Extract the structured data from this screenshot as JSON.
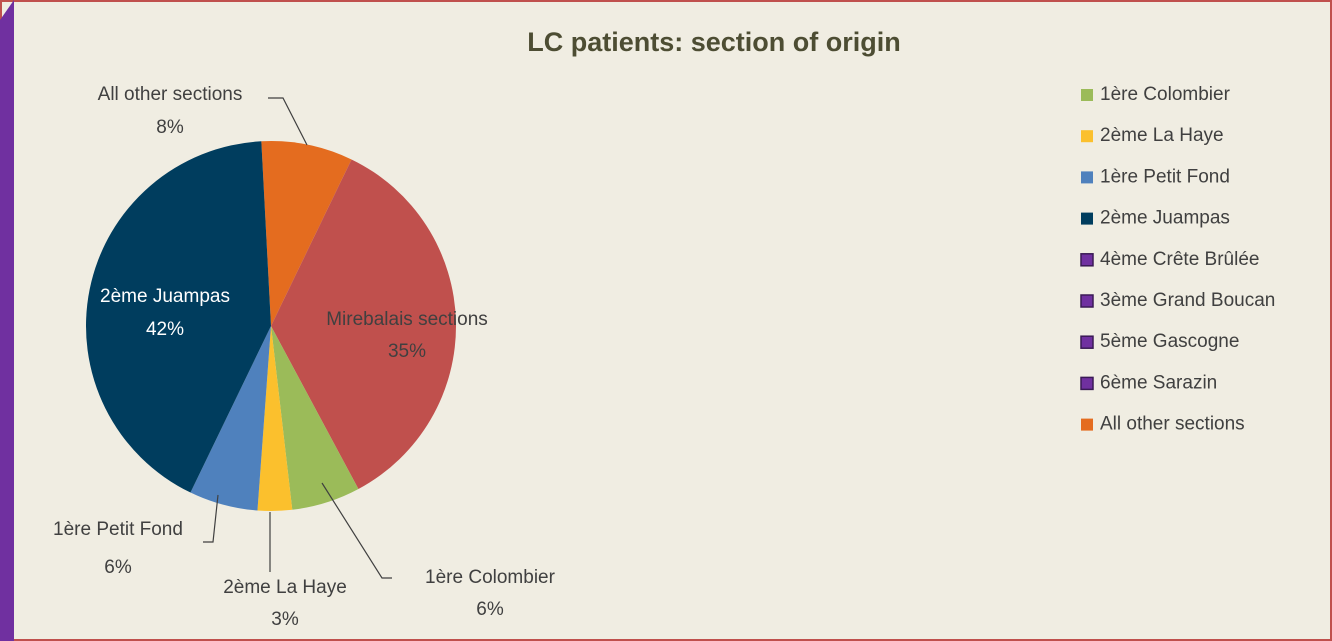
{
  "chart_data": {
    "type": "pie",
    "title": "LC patients: section of origin",
    "categories": [
      "All other sections",
      "Mirebalais sections",
      "1ère Colombier",
      "2ème La Haye",
      "1ère Petit Fond",
      "2ème Juampas"
    ],
    "values": [
      8,
      35,
      6,
      3,
      6,
      42
    ],
    "value_labels": [
      "8%",
      "35%",
      "6%",
      "3%",
      "6%",
      "42%"
    ],
    "colors": [
      "#e46c1f",
      "#c0504d",
      "#9bbb59",
      "#fbc02d",
      "#4f81bd",
      "#003d5e"
    ],
    "legend": [
      {
        "name": "1ère Colombier",
        "color": "#9bbb59"
      },
      {
        "name": "2ème La Haye",
        "color": "#fbc02d"
      },
      {
        "name": "1ère Petit Fond",
        "color": "#4f81bd"
      },
      {
        "name": "2ème Juampas",
        "color": "#003d5e"
      },
      {
        "name": "4ème Crête Brûlée",
        "color": "#7030a0"
      },
      {
        "name": "3ème Grand Boucan",
        "color": "#7030a0"
      },
      {
        "name": "5ème Gascogne",
        "color": "#7030a0"
      },
      {
        "name": "6ème Sarazin",
        "color": "#7030a0"
      },
      {
        "name": "All other sections",
        "color": "#e46c1f"
      }
    ]
  }
}
